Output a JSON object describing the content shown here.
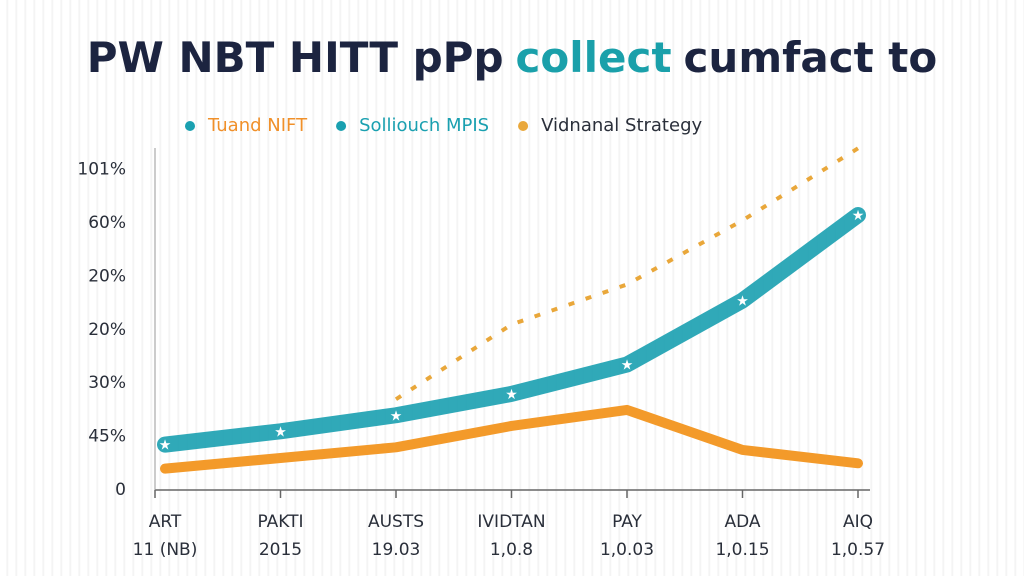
{
  "chart_data": {
    "type": "line",
    "title_parts": [
      {
        "text": "PW NBT HITT pPp",
        "color": "#1c2440"
      },
      {
        "text": "collect",
        "color": "#1aa0aa"
      },
      {
        "text": "cumfact to",
        "color": "#1c2440"
      }
    ],
    "categories": [
      [
        "ART",
        "11 (NB)"
      ],
      [
        "PAKTI",
        "2015"
      ],
      [
        "AUSTS",
        "19.03"
      ],
      [
        "IVIDTAN",
        "1,0.8"
      ],
      [
        "PAY",
        "1,0.03"
      ],
      [
        "ADA",
        "1,0.15"
      ],
      [
        "AIQ",
        "1,0.57"
      ]
    ],
    "y_labels": [
      "0",
      "45%",
      "30%",
      "20%",
      "20%",
      "60%",
      "101%"
    ],
    "ylim": [
      0,
      6.5
    ],
    "series": [
      {
        "name": "Tuand NIFT",
        "color": "#f39a2a",
        "legend_text_color": "#f0902a",
        "legend_dot_color": "#1aa0b0",
        "style": "solid",
        "values": [
          0.4,
          0.6,
          0.8,
          1.2,
          1.5,
          0.75,
          0.5
        ]
      },
      {
        "name": "Solliouch MPIS",
        "color": "#1aa0b0",
        "legend_text_color": "#1aa0b0",
        "legend_dot_color": "#1aa0b0",
        "style": "band",
        "values": [
          0.85,
          1.1,
          1.4,
          1.8,
          2.35,
          3.55,
          5.15
        ]
      },
      {
        "name": "Vidnanal Strategy",
        "color": "#e9a73a",
        "legend_text_color": "#2a2f3a",
        "legend_dot_color": "#e9a73a",
        "style": "dashed",
        "values": [
          null,
          null,
          1.7,
          3.1,
          3.85,
          5.05,
          6.4
        ]
      }
    ]
  }
}
